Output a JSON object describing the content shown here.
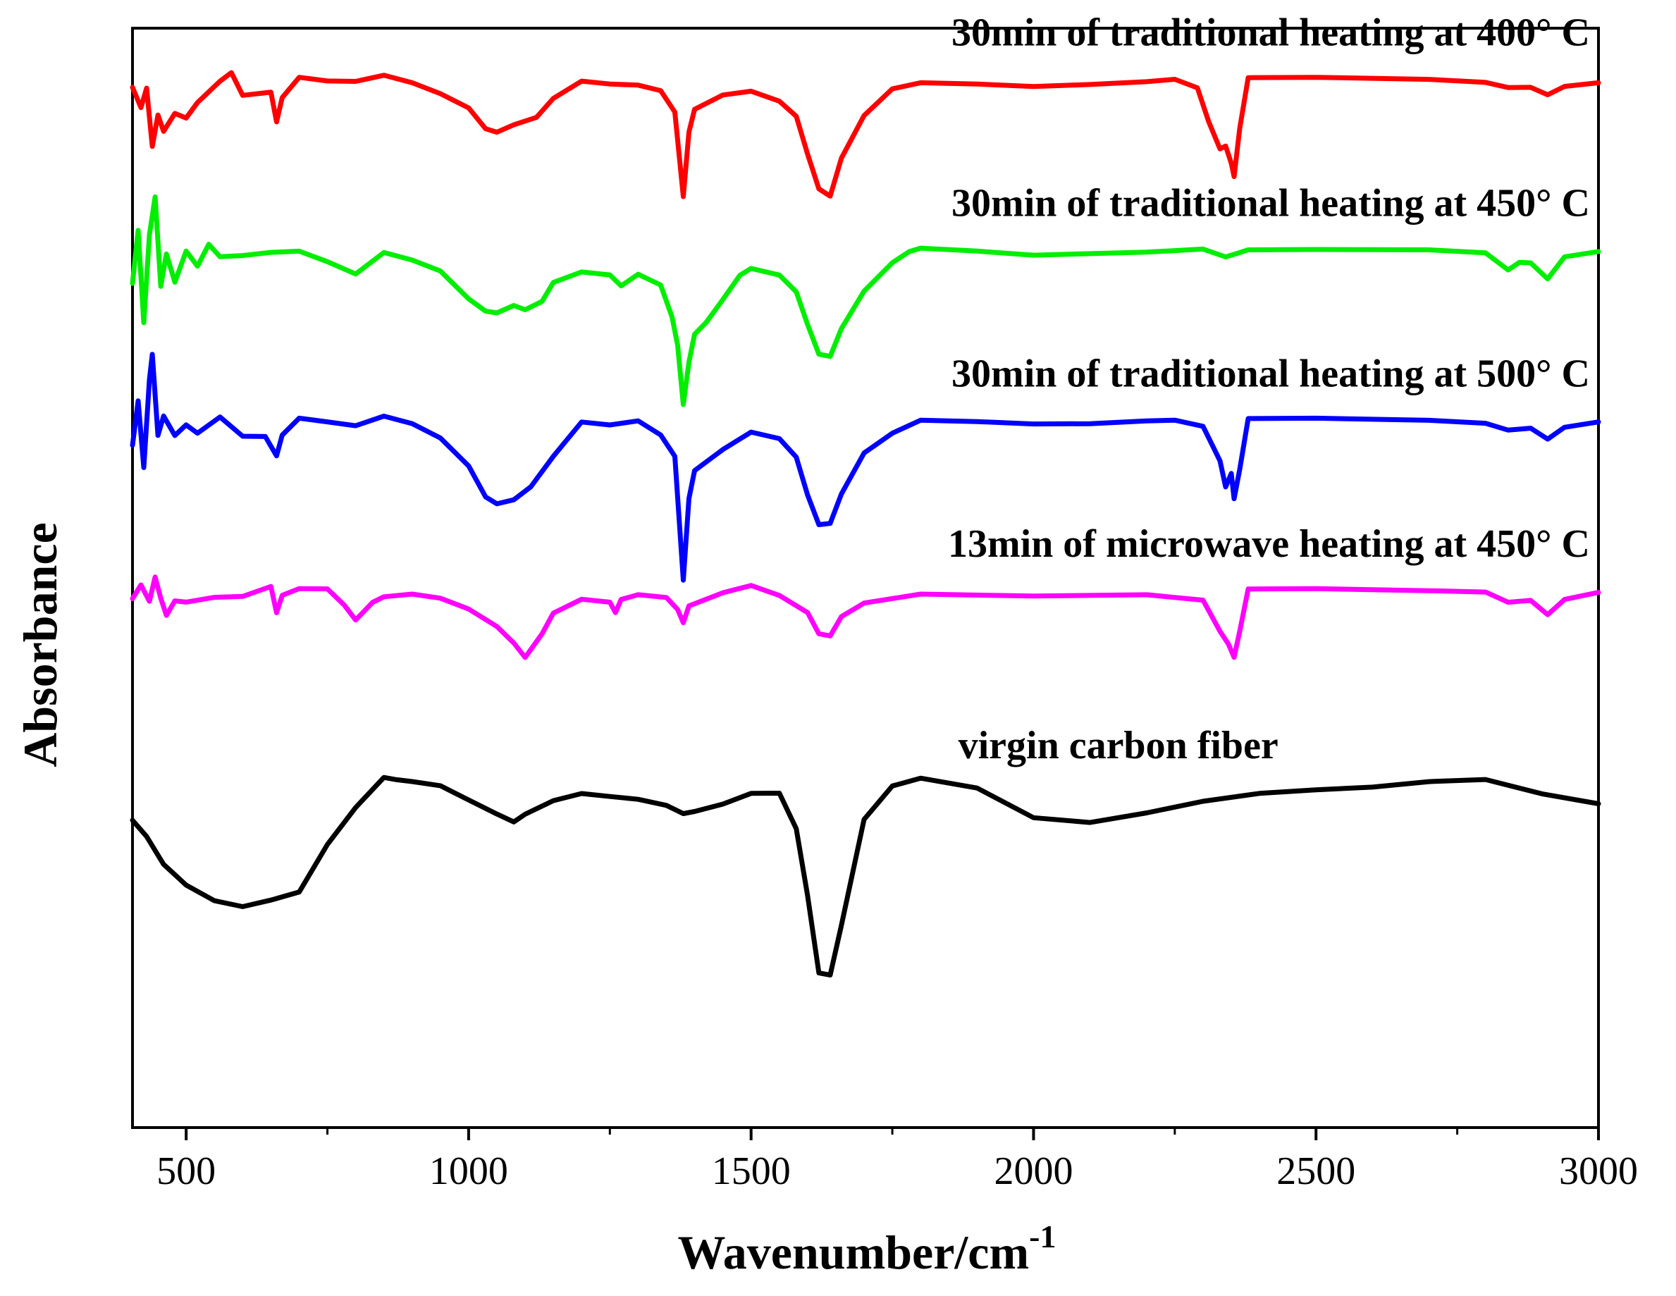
{
  "chart_data": {
    "type": "line",
    "xlabel": "Wavenumber/cm",
    "xlabel_superscript": "-1",
    "ylabel": "Absorbance",
    "xlim": [
      405,
      3000
    ],
    "x_ticks": [
      500,
      1000,
      1500,
      2000,
      2500,
      3000
    ],
    "x_minor_ticks": [
      750,
      1250,
      1750,
      2250,
      2750
    ],
    "y_ticks_shown": false,
    "grid": false,
    "legend": "inline labels above each curve",
    "series": [
      {
        "name": "30min of traditional heating at 400° C",
        "color": "#ff0000",
        "offset": 4.2,
        "x": [
          405,
          420,
          430,
          440,
          450,
          460,
          480,
          500,
          520,
          560,
          580,
          600,
          650,
          660,
          670,
          700,
          750,
          800,
          850,
          900,
          950,
          1000,
          1030,
          1050,
          1080,
          1120,
          1150,
          1200,
          1250,
          1300,
          1340,
          1365,
          1380,
          1390,
          1400,
          1450,
          1500,
          1550,
          1580,
          1600,
          1620,
          1640,
          1660,
          1700,
          1750,
          1800,
          1900,
          2000,
          2100,
          2200,
          2250,
          2290,
          2310,
          2330,
          2340,
          2350,
          2355,
          2365,
          2380,
          2500,
          2700,
          2800,
          2840,
          2880,
          2910,
          2940,
          3000
        ],
        "y": [
          0.95,
          0.8,
          0.97,
          0.6,
          0.78,
          0.72,
          0.84,
          0.8,
          0.86,
          0.95,
          1.02,
          0.92,
          0.9,
          0.76,
          0.9,
          1.0,
          0.98,
          0.98,
          1.02,
          0.98,
          0.92,
          0.84,
          0.72,
          0.7,
          0.74,
          0.78,
          0.9,
          1.0,
          0.98,
          0.97,
          0.94,
          0.8,
          0.3,
          0.7,
          0.82,
          0.9,
          0.92,
          0.86,
          0.78,
          0.55,
          0.35,
          0.32,
          0.55,
          0.78,
          0.94,
          0.98,
          0.98,
          0.97,
          0.98,
          0.99,
          1.0,
          0.96,
          0.75,
          0.58,
          0.62,
          0.5,
          0.44,
          0.7,
          1.0,
          1.0,
          1.0,
          0.99,
          0.94,
          0.96,
          0.9,
          0.95,
          0.99
        ]
      },
      {
        "name": "30min of traditional heating at 450° C",
        "color": "#00ee00",
        "offset": 3.2,
        "x": [
          405,
          415,
          425,
          435,
          445,
          455,
          465,
          480,
          500,
          520,
          540,
          560,
          600,
          650,
          700,
          750,
          800,
          850,
          900,
          950,
          1000,
          1030,
          1050,
          1080,
          1100,
          1130,
          1150,
          1200,
          1250,
          1270,
          1300,
          1340,
          1360,
          1370,
          1380,
          1390,
          1400,
          1420,
          1450,
          1480,
          1500,
          1550,
          1580,
          1600,
          1620,
          1640,
          1660,
          1700,
          1750,
          1780,
          1800,
          1900,
          2000,
          2200,
          2300,
          2340,
          2360,
          2380,
          2500,
          2700,
          2800,
          2840,
          2860,
          2880,
          2910,
          2940,
          3000
        ],
        "y": [
          0.8,
          1.1,
          0.6,
          1.05,
          1.35,
          0.75,
          1.0,
          0.85,
          1.02,
          0.9,
          1.0,
          0.92,
          0.98,
          0.96,
          0.98,
          0.92,
          0.85,
          0.98,
          0.94,
          0.88,
          0.72,
          0.65,
          0.64,
          0.68,
          0.66,
          0.7,
          0.82,
          0.88,
          0.86,
          0.8,
          0.86,
          0.8,
          0.6,
          0.45,
          0.08,
          0.35,
          0.5,
          0.58,
          0.7,
          0.84,
          0.88,
          0.84,
          0.75,
          0.55,
          0.38,
          0.38,
          0.55,
          0.75,
          0.92,
          1.0,
          1.01,
          1.0,
          0.98,
          0.99,
          1.0,
          0.97,
          0.98,
          0.99,
          0.99,
          1.0,
          0.99,
          0.87,
          0.92,
          0.93,
          0.82,
          0.95,
          1.0
        ]
      },
      {
        "name": "30min of traditional heating at 500° C",
        "color": "#0000ff",
        "offset": 2.2,
        "x": [
          405,
          415,
          425,
          435,
          440,
          450,
          460,
          480,
          500,
          520,
          560,
          600,
          640,
          660,
          670,
          700,
          750,
          800,
          850,
          900,
          950,
          1000,
          1030,
          1050,
          1080,
          1110,
          1150,
          1200,
          1250,
          1300,
          1340,
          1365,
          1380,
          1390,
          1400,
          1450,
          1500,
          1550,
          1580,
          1600,
          1620,
          1640,
          1660,
          1700,
          1750,
          1800,
          1900,
          2000,
          2100,
          2200,
          2250,
          2300,
          2330,
          2340,
          2350,
          2355,
          2365,
          2380,
          2500,
          2700,
          2800,
          2840,
          2880,
          2910,
          2940,
          3000
        ],
        "y": [
          0.85,
          1.1,
          0.75,
          1.2,
          1.38,
          0.9,
          1.05,
          0.95,
          1.0,
          0.92,
          0.98,
          0.92,
          0.94,
          0.8,
          0.92,
          1.0,
          0.98,
          0.96,
          1.02,
          0.98,
          0.9,
          0.74,
          0.56,
          0.52,
          0.54,
          0.6,
          0.8,
          1.0,
          0.98,
          1.0,
          0.92,
          0.78,
          0.05,
          0.55,
          0.7,
          0.82,
          0.92,
          0.88,
          0.78,
          0.55,
          0.38,
          0.4,
          0.58,
          0.8,
          0.92,
          1.0,
          1.0,
          0.99,
          0.99,
          1.0,
          1.0,
          0.96,
          0.75,
          0.62,
          0.68,
          0.55,
          0.7,
          1.0,
          1.0,
          1.0,
          0.99,
          0.93,
          0.96,
          0.88,
          0.95,
          1.0
        ]
      },
      {
        "name": "13min of microwave heating at 450° C",
        "color": "#ff00ff",
        "offset": 1.2,
        "x": [
          405,
          420,
          435,
          445,
          455,
          465,
          480,
          500,
          550,
          600,
          650,
          660,
          670,
          700,
          750,
          780,
          800,
          830,
          850,
          900,
          950,
          1000,
          1050,
          1080,
          1100,
          1130,
          1150,
          1200,
          1250,
          1260,
          1270,
          1300,
          1350,
          1370,
          1380,
          1390,
          1450,
          1500,
          1550,
          1600,
          1620,
          1640,
          1660,
          1700,
          1800,
          2000,
          2200,
          2300,
          2330,
          2345,
          2355,
          2365,
          2380,
          2500,
          2700,
          2800,
          2840,
          2880,
          2910,
          2940,
          3000
        ],
        "y": [
          0.95,
          1.0,
          0.9,
          1.12,
          0.92,
          0.88,
          0.98,
          0.96,
          1.0,
          0.98,
          1.0,
          0.88,
          0.98,
          1.0,
          1.0,
          0.92,
          0.82,
          0.94,
          0.96,
          0.98,
          0.96,
          0.9,
          0.8,
          0.7,
          0.62,
          0.75,
          0.88,
          0.96,
          0.94,
          0.86,
          0.96,
          0.98,
          0.96,
          0.9,
          0.8,
          0.92,
          0.98,
          1.02,
          0.96,
          0.86,
          0.74,
          0.74,
          0.86,
          0.92,
          0.98,
          0.98,
          0.98,
          0.94,
          0.75,
          0.68,
          0.62,
          0.75,
          1.0,
          1.0,
          1.0,
          1.0,
          0.92,
          0.95,
          0.85,
          0.94,
          1.0
        ]
      },
      {
        "name": "virgin carbon fiber",
        "color": "#000000",
        "offset": 0.0,
        "x": [
          405,
          430,
          460,
          500,
          550,
          600,
          650,
          700,
          750,
          800,
          850,
          870,
          900,
          950,
          1000,
          1050,
          1080,
          1100,
          1150,
          1200,
          1250,
          1300,
          1350,
          1380,
          1400,
          1450,
          1500,
          1550,
          1580,
          1600,
          1620,
          1640,
          1660,
          1700,
          1750,
          1800,
          1900,
          2000,
          2100,
          2200,
          2300,
          2400,
          2500,
          2600,
          2700,
          2800,
          2900,
          3000
        ],
        "y": [
          0.85,
          0.78,
          0.62,
          0.5,
          0.42,
          0.36,
          0.36,
          0.42,
          0.7,
          0.92,
          1.1,
          1.08,
          1.08,
          1.06,
          0.98,
          0.9,
          0.85,
          0.9,
          0.98,
          1.02,
          1.0,
          0.98,
          0.94,
          0.88,
          0.9,
          0.94,
          1.0,
          1.0,
          0.8,
          0.4,
          -0.05,
          -0.05,
          0.25,
          0.85,
          1.05,
          1.1,
          1.05,
          0.88,
          0.85,
          0.9,
          0.96,
          1.0,
          1.02,
          1.04,
          1.08,
          1.1,
          1.02,
          0.96
        ]
      }
    ]
  }
}
